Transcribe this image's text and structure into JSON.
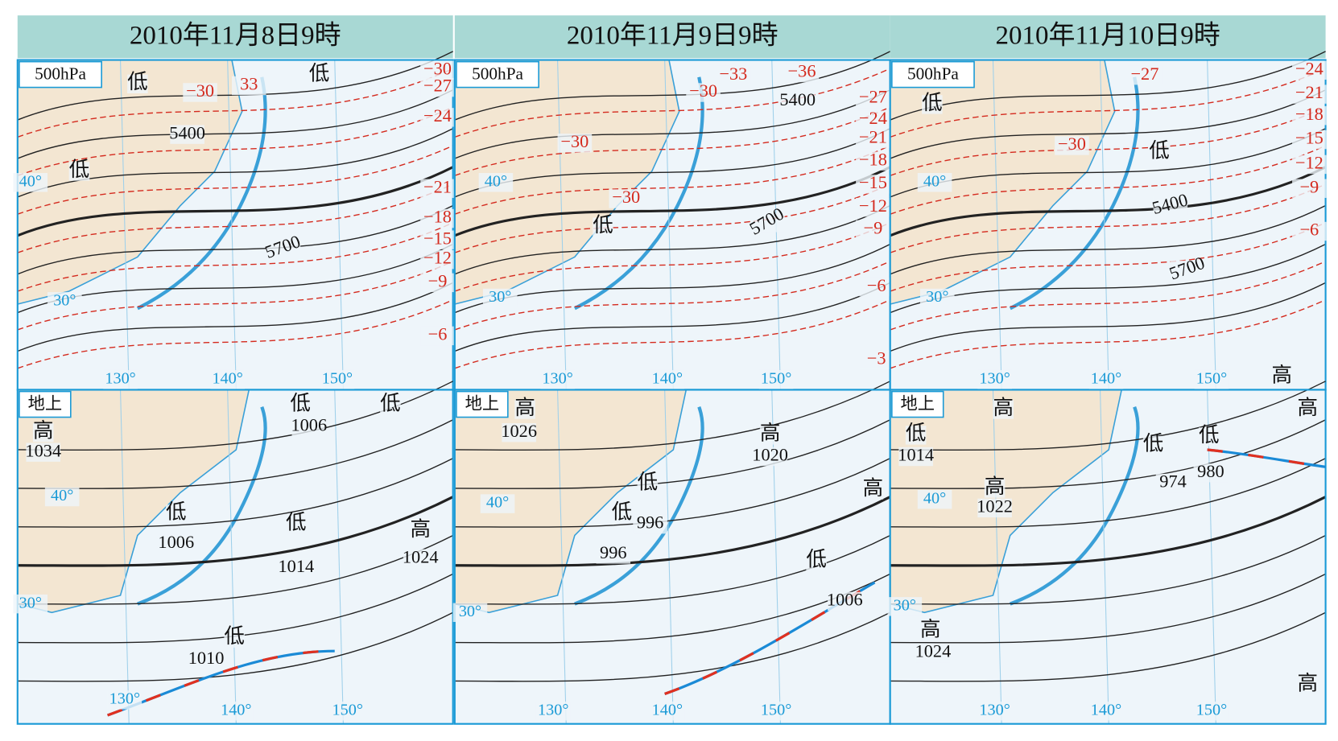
{
  "panels": [
    {
      "header": "2010年11月8日9時",
      "upper": {
        "level": "500hPa",
        "labels": [
          "低",
          "低",
          "−30",
          "33",
          "−30",
          "−27",
          "−24",
          "5400",
          "低",
          "40°",
          "−21",
          "−18",
          "−15",
          "−12",
          "5700",
          "−9",
          "30°",
          "−6",
          "130°",
          "140°",
          "150°"
        ]
      },
      "lower": {
        "level": "地上",
        "labels": [
          "低",
          "低",
          "高",
          "1034",
          "1006",
          "低",
          "1006",
          "低",
          "1014",
          "高",
          "1024",
          "40°",
          "30°",
          "低",
          "1010",
          "130°",
          "140°",
          "150°"
        ]
      }
    },
    {
      "header": "2010年11月9日9時",
      "upper": {
        "level": "500hPa",
        "labels": [
          "−33",
          "−36",
          "−30",
          "5400",
          "−27",
          "−24",
          "−21",
          "−30",
          "−18",
          "−15",
          "40°",
          "−30",
          "−12",
          "低",
          "−9",
          "5700",
          "−6",
          "30°",
          "−3",
          "130°",
          "140°",
          "150°"
        ]
      },
      "lower": {
        "level": "地上",
        "labels": [
          "高",
          "1026",
          "高",
          "1020",
          "低",
          "低",
          "996",
          "996",
          "高",
          "低",
          "1006",
          "40°",
          "30°",
          "130°",
          "140°",
          "150°"
        ]
      }
    },
    {
      "header": "2010年11月10日9時",
      "upper": {
        "level": "500hPa",
        "labels": [
          "−27",
          "−24",
          "低",
          "−21",
          "−18",
          "−30",
          "低",
          "−15",
          "−12",
          "40°",
          "−9",
          "5400",
          "−6",
          "5700",
          "30°",
          "高",
          "130°",
          "140°",
          "150°"
        ]
      },
      "lower": {
        "level": "地上",
        "labels": [
          "高",
          "高",
          "低",
          "1014",
          "低",
          "低",
          "980",
          "974",
          "高",
          "1022",
          "40°",
          "30°",
          "高",
          "1024",
          "高",
          "130°",
          "140°",
          "150°"
        ]
      }
    }
  ]
}
